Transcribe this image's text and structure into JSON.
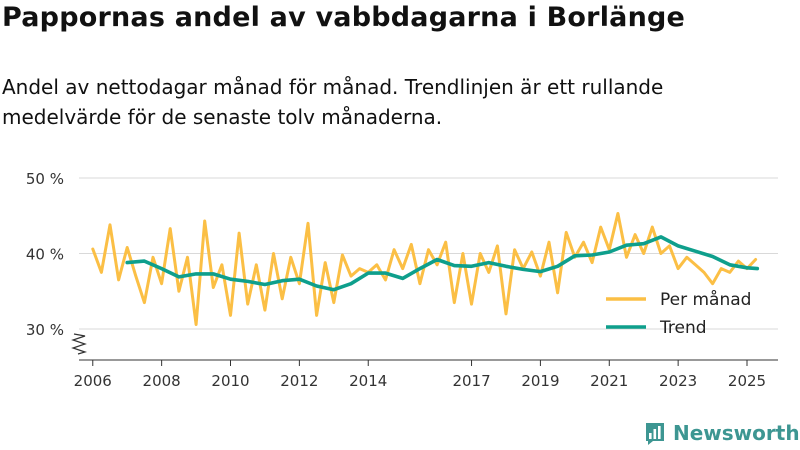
{
  "header": {
    "title": "Pappornas andel av vabbdagarna i Borlänge",
    "subtitle": "Andel av nettodagar månad för månad. Trendlinjen är ett rullande medelvärde för de senaste tolv månaderna."
  },
  "brand": {
    "name": "Newsworthy",
    "color": "#3d9692",
    "icon": "bar-chart-logo-icon"
  },
  "chart_data": {
    "type": "line",
    "title": "Pappornas andel av vabbdagarna i Borlänge",
    "subtitle": "Andel av nettodagar månad för månad. Trendlinjen är ett rullande medelvärde för de senaste tolv månaderna.",
    "xlabel": "",
    "ylabel": "",
    "ylim": [
      30,
      50
    ],
    "xlim": [
      2005.6,
      2025.9
    ],
    "y_ticks": [
      30,
      40,
      50
    ],
    "y_tick_labels": [
      "30 %",
      "40 %",
      "50 %"
    ],
    "x_ticks": [
      2006,
      2008,
      2010,
      2012,
      2014,
      2017,
      2019,
      2021,
      2023,
      2025
    ],
    "x_tick_labels": [
      "2006",
      "2008",
      "2010",
      "2012",
      "2014",
      "2017",
      "2019",
      "2021",
      "2023",
      "2025"
    ],
    "grid": "horizontal",
    "y_axis_break": true,
    "legend_position": "bottom-right",
    "series": [
      {
        "name": "Per månad",
        "color": "#fbbf45",
        "x": [
          2006.0,
          2006.25,
          2006.5,
          2006.75,
          2007.0,
          2007.25,
          2007.5,
          2007.75,
          2008.0,
          2008.25,
          2008.5,
          2008.75,
          2009.0,
          2009.25,
          2009.5,
          2009.75,
          2010.0,
          2010.25,
          2010.5,
          2010.75,
          2011.0,
          2011.25,
          2011.5,
          2011.75,
          2012.0,
          2012.25,
          2012.5,
          2012.75,
          2013.0,
          2013.25,
          2013.5,
          2013.75,
          2014.0,
          2014.25,
          2014.5,
          2014.75,
          2015.0,
          2015.25,
          2015.5,
          2015.75,
          2016.0,
          2016.25,
          2016.5,
          2016.75,
          2017.0,
          2017.25,
          2017.5,
          2017.75,
          2018.0,
          2018.25,
          2018.5,
          2018.75,
          2019.0,
          2019.25,
          2019.5,
          2019.75,
          2020.0,
          2020.25,
          2020.5,
          2020.75,
          2021.0,
          2021.25,
          2021.5,
          2021.75,
          2022.0,
          2022.25,
          2022.5,
          2022.75,
          2023.0,
          2023.25,
          2023.5,
          2023.75,
          2024.0,
          2024.25,
          2024.5,
          2024.75,
          2025.0,
          2025.25
        ],
        "values": [
          40.6,
          37.5,
          43.8,
          36.5,
          40.8,
          37.0,
          33.5,
          39.5,
          36.0,
          43.3,
          35.0,
          39.5,
          30.6,
          44.3,
          35.5,
          38.5,
          31.8,
          42.7,
          33.3,
          38.5,
          32.5,
          40.0,
          34.0,
          39.5,
          36.0,
          44.0,
          31.8,
          38.8,
          33.5,
          39.8,
          37.0,
          38.0,
          37.5,
          38.5,
          36.5,
          40.5,
          38.0,
          41.2,
          36.0,
          40.5,
          38.5,
          41.5,
          33.5,
          40.0,
          33.3,
          40.0,
          37.5,
          41.0,
          32.0,
          40.5,
          38.0,
          40.2,
          37.0,
          41.5,
          34.8,
          42.8,
          39.5,
          41.5,
          38.8,
          43.5,
          40.5,
          45.3,
          39.5,
          42.5,
          40.0,
          43.5,
          40.0,
          41.0,
          38.0,
          39.5,
          38.5,
          37.5,
          36.0,
          38.0,
          37.5,
          39.0,
          38.0,
          39.2
        ]
      },
      {
        "name": "Trend",
        "color": "#0e9f8c",
        "x": [
          2007.0,
          2007.5,
          2008.0,
          2008.5,
          2009.0,
          2009.5,
          2010.0,
          2010.5,
          2011.0,
          2011.5,
          2012.0,
          2012.5,
          2013.0,
          2013.5,
          2014.0,
          2014.5,
          2015.0,
          2015.5,
          2016.0,
          2016.5,
          2017.0,
          2017.5,
          2018.0,
          2018.5,
          2019.0,
          2019.5,
          2020.0,
          2020.5,
          2021.0,
          2021.5,
          2022.0,
          2022.5,
          2023.0,
          2023.5,
          2024.0,
          2024.5,
          2025.0,
          2025.3
        ],
        "values": [
          38.8,
          39.0,
          38.0,
          36.9,
          37.3,
          37.3,
          36.6,
          36.3,
          35.9,
          36.4,
          36.6,
          35.7,
          35.2,
          36.0,
          37.4,
          37.4,
          36.7,
          38.0,
          39.2,
          38.4,
          38.3,
          38.8,
          38.3,
          37.9,
          37.6,
          38.3,
          39.7,
          39.8,
          40.2,
          41.1,
          41.3,
          42.2,
          41.0,
          40.3,
          39.6,
          38.5,
          38.1,
          38.0
        ]
      }
    ]
  }
}
